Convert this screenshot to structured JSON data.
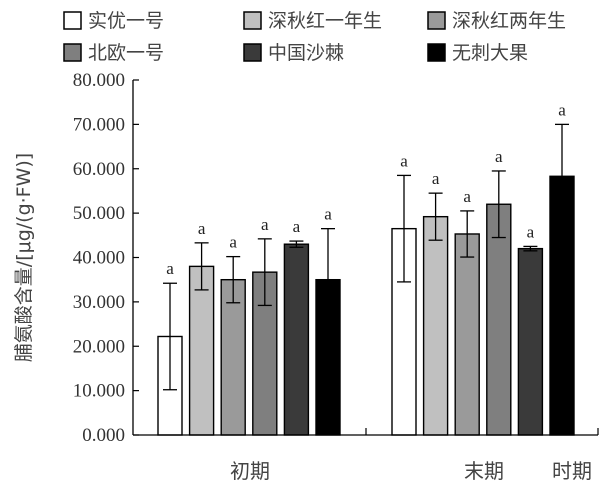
{
  "chart_data": {
    "type": "bar",
    "ylabel": "脯氨酸含量/[μg/(g·FW)]",
    "ylim": [
      0,
      80
    ],
    "yticks": [
      "0.000",
      "10.000",
      "20.000",
      "30.000",
      "40.000",
      "50.000",
      "60.000",
      "70.000",
      "80.000"
    ],
    "categories": [
      "初期",
      "末期"
    ],
    "x_label_extra": "时期",
    "legend_position": "top",
    "series": [
      {
        "name": "实优一号",
        "color": "#ffffff",
        "values": [
          22.2,
          46.5
        ],
        "errors": [
          12.0,
          12.0
        ],
        "letters": [
          "a",
          "a"
        ]
      },
      {
        "name": "深秋红一年生",
        "color": "#c0c0c0",
        "values": [
          38.0,
          49.2
        ],
        "errors": [
          5.3,
          5.3
        ],
        "letters": [
          "a",
          "a"
        ]
      },
      {
        "name": "深秋红两年生",
        "color": "#9a9a9a",
        "values": [
          35.0,
          45.3
        ],
        "errors": [
          5.2,
          5.2
        ],
        "letters": [
          "a",
          "a"
        ]
      },
      {
        "name": "北欧一号",
        "color": "#7f7f7f",
        "values": [
          36.7,
          52.0
        ],
        "errors": [
          7.5,
          7.5
        ],
        "letters": [
          "a",
          "a"
        ]
      },
      {
        "name": "中国沙棘",
        "color": "#3a3a3a",
        "values": [
          43.0,
          42.0
        ],
        "errors": [
          0.7,
          0.5
        ],
        "letters": [
          "a",
          "a"
        ]
      },
      {
        "name": "无刺大果",
        "color": "#000000",
        "values": [
          35.0,
          58.3
        ],
        "errors": [
          11.5,
          11.7
        ],
        "letters": [
          "a",
          "a"
        ]
      }
    ]
  }
}
